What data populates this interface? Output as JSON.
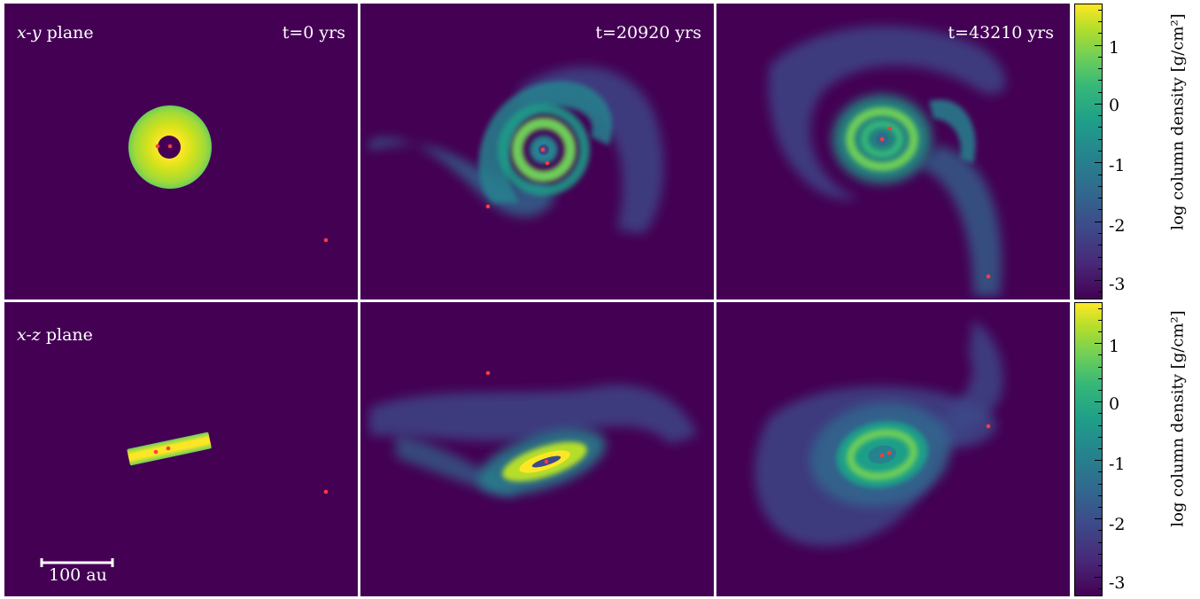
{
  "rows": [
    {
      "plane_italic": "x-y",
      "plane_text": " plane"
    },
    {
      "plane_italic": "x-z",
      "plane_text": " plane"
    }
  ],
  "times": [
    "t=0 yrs",
    "t=20920 yrs",
    "t=43210 yrs"
  ],
  "colorbar": {
    "label": "log column density [g/cm²]",
    "ticks": [
      "1",
      "0",
      "-1",
      "-2",
      "-3"
    ],
    "range": [
      -3.3,
      1.7
    ],
    "colormap": "viridis"
  },
  "scale_bar": {
    "label": "100 au"
  },
  "colors": {
    "background": "#440154",
    "star": "#ff3b3b",
    "divider": "#ffffff"
  }
}
